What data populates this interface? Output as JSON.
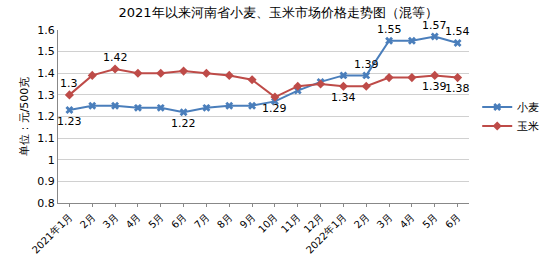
{
  "chart_data": {
    "type": "line",
    "title": "2021年以来河南省小麦、玉米市场价格走势图（混等）",
    "y_label": "单位：元/500克",
    "categories": [
      "2021年1月",
      "2月",
      "3月",
      "4月",
      "5月",
      "6月",
      "7月",
      "8月",
      "9月",
      "10月",
      "11月",
      "12月",
      "2022年1月",
      "2月",
      "3月",
      "4月",
      "5月",
      "6月"
    ],
    "series": [
      {
        "name": "小麦",
        "color": "#4a7ebb",
        "marker": "x",
        "values": [
          1.23,
          1.25,
          1.25,
          1.24,
          1.24,
          1.22,
          1.24,
          1.25,
          1.25,
          1.27,
          1.32,
          1.36,
          1.39,
          1.39,
          1.55,
          1.55,
          1.57,
          1.54
        ],
        "value_labels": [
          "1.23",
          null,
          null,
          null,
          null,
          "1.22",
          null,
          null,
          null,
          null,
          null,
          null,
          null,
          "1.39",
          "1.55",
          null,
          "1.57",
          "1.54"
        ]
      },
      {
        "name": "玉米",
        "color": "#be4b48",
        "marker": "diamond",
        "values": [
          1.3,
          1.39,
          1.42,
          1.4,
          1.4,
          1.41,
          1.4,
          1.39,
          1.37,
          1.29,
          1.34,
          1.35,
          1.34,
          1.34,
          1.38,
          1.38,
          1.39,
          1.38
        ],
        "value_labels": [
          "1.3",
          null,
          "1.42",
          null,
          null,
          null,
          null,
          null,
          null,
          "1.29",
          null,
          null,
          "1.34",
          null,
          null,
          null,
          "1.39",
          "1.38"
        ]
      }
    ],
    "ylim": [
      0.8,
      1.6
    ],
    "yticks": [
      0.8,
      0.9,
      1,
      1.1,
      1.2,
      1.3,
      1.4,
      1.5,
      1.6
    ],
    "grid": true,
    "legend": "right",
    "data_labels": true
  }
}
